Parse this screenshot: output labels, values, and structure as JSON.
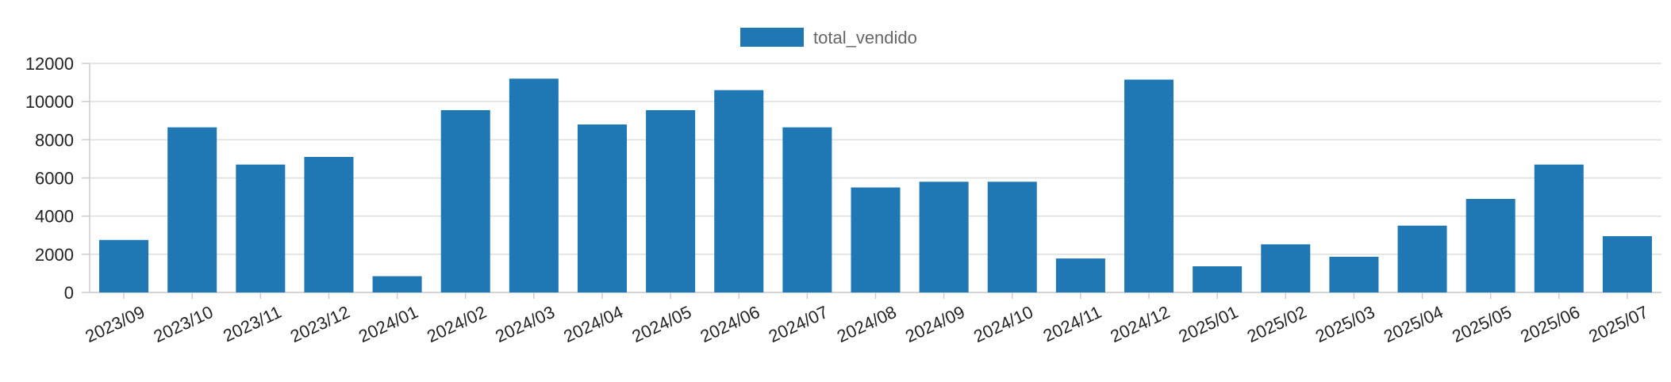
{
  "chart_data": {
    "type": "bar",
    "categories": [
      "2023/09",
      "2023/10",
      "2023/11",
      "2023/12",
      "2024/01",
      "2024/02",
      "2024/03",
      "2024/04",
      "2024/05",
      "2024/06",
      "2024/07",
      "2024/08",
      "2024/09",
      "2024/10",
      "2024/11",
      "2024/12",
      "2025/01",
      "2025/02",
      "2025/03",
      "2025/04",
      "2025/05",
      "2025/06",
      "2025/07"
    ],
    "series": [
      {
        "name": "total_vendido",
        "values": [
          2750,
          8650,
          6700,
          7100,
          850,
          9550,
          11200,
          8800,
          9550,
          10600,
          8650,
          5500,
          5800,
          5800,
          1780,
          11150,
          1370,
          2520,
          1870,
          3500,
          4900,
          6700,
          2950
        ],
        "color": "#1f77b4"
      }
    ],
    "y_ticks": [
      "0",
      "2000",
      "4000",
      "6000",
      "8000",
      "10000",
      "12000"
    ],
    "ylim": [
      0,
      12000
    ],
    "xlabel": "",
    "ylabel": "",
    "title": "",
    "grid": true,
    "legend_position": "top-center"
  }
}
